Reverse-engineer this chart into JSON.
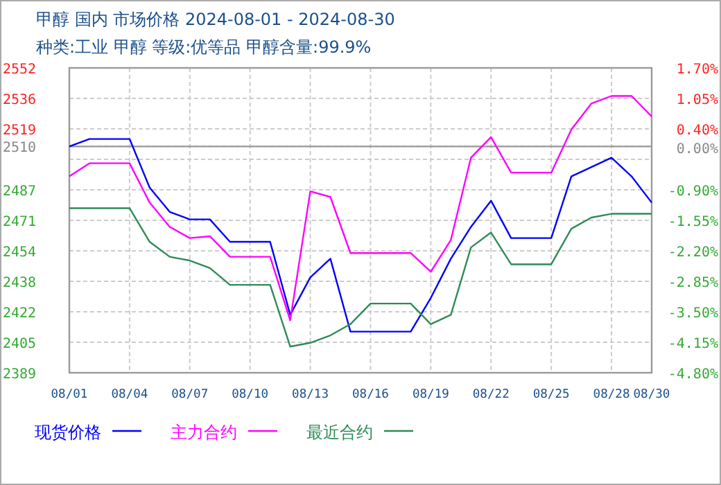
{
  "chart_data": {
    "type": "line",
    "title": "甲醇  国内  市场价格  2024-08-01 - 2024-08-30",
    "subtitle": "种类:工业 甲醇  等级:优等品  甲醇含量:99.9%",
    "x": [
      "2024-08-01",
      "2024-08-02",
      "2024-08-03",
      "2024-08-04",
      "2024-08-05",
      "2024-08-06",
      "2024-08-07",
      "2024-08-08",
      "2024-08-09",
      "2024-08-10",
      "2024-08-11",
      "2024-08-12",
      "2024-08-13",
      "2024-08-14",
      "2024-08-15",
      "2024-08-16",
      "2024-08-17",
      "2024-08-18",
      "2024-08-19",
      "2024-08-20",
      "2024-08-21",
      "2024-08-22",
      "2024-08-23",
      "2024-08-24",
      "2024-08-25",
      "2024-08-26",
      "2024-08-27",
      "2024-08-28",
      "2024-08-29",
      "2024-08-30"
    ],
    "series": [
      {
        "name": "现货价格",
        "color": "#0000ff",
        "values": [
          2510,
          2514,
          2514,
          2514,
          2488,
          2475,
          2471,
          2471,
          2459,
          2459,
          2459,
          2420,
          2440,
          2450,
          2411,
          2411,
          2411,
          2411,
          2429,
          2450,
          2467,
          2481,
          2461,
          2461,
          2461,
          2494,
          2499,
          2504,
          2494,
          2480
        ]
      },
      {
        "name": "主力合约",
        "color": "#ff00ff",
        "values": [
          2494,
          2501,
          2501,
          2501,
          2480,
          2467,
          2461,
          2462,
          2451,
          2451,
          2451,
          2417,
          2486,
          2483,
          2453,
          2453,
          2453,
          2453,
          2443,
          2460,
          2504,
          2515,
          2496,
          2496,
          2496,
          2519,
          2533,
          2537,
          2537,
          2526
        ]
      },
      {
        "name": "最近合约",
        "color": "#2e8b57",
        "values": [
          2477,
          2477,
          2477,
          2477,
          2459,
          2451,
          2449,
          2445,
          2436,
          2436,
          2436,
          2403,
          2405,
          2409,
          2415,
          2426,
          2426,
          2426,
          2415,
          2420,
          2456,
          2464,
          2447,
          2447,
          2447,
          2466,
          2472,
          2474,
          2474,
          2474
        ]
      }
    ],
    "xlim": [
      "2024-08-01",
      "2024-08-30"
    ],
    "xticks": [
      {
        "value": "2024-08-01",
        "label": "08/01"
      },
      {
        "value": "2024-08-04",
        "label": "08/04"
      },
      {
        "value": "2024-08-07",
        "label": "08/07"
      },
      {
        "value": "2024-08-10",
        "label": "08/10"
      },
      {
        "value": "2024-08-13",
        "label": "08/13"
      },
      {
        "value": "2024-08-16",
        "label": "08/16"
      },
      {
        "value": "2024-08-19",
        "label": "08/19"
      },
      {
        "value": "2024-08-22",
        "label": "08/22"
      },
      {
        "value": "2024-08-25",
        "label": "08/25"
      },
      {
        "value": "2024-08-28",
        "label": "08/28"
      },
      {
        "value": "2024-08-30",
        "label": "08/30"
      }
    ],
    "ylim": [
      2389,
      2552
    ],
    "yticks": [
      {
        "value": 2552,
        "label": "2552"
      },
      {
        "value": 2535.7,
        "label": "2536"
      },
      {
        "value": 2519.4,
        "label": "2519"
      },
      {
        "value": 2510,
        "label": "2510"
      },
      {
        "value": 2503.1,
        "label": null
      },
      {
        "value": 2486.8,
        "label": "2487"
      },
      {
        "value": 2470.5,
        "label": "2471"
      },
      {
        "value": 2454.2,
        "label": "2454"
      },
      {
        "value": 2437.9,
        "label": "2438"
      },
      {
        "value": 2421.6,
        "label": "2422"
      },
      {
        "value": 2405.3,
        "label": "2405"
      },
      {
        "value": 2389,
        "label": "2389"
      }
    ],
    "y2lim": [
      -4.8,
      1.7
    ],
    "y2ticks": [
      {
        "value": 1.7,
        "label": "1.70%"
      },
      {
        "value": 1.05,
        "label": "1.05%"
      },
      {
        "value": 0.4,
        "label": "0.40%"
      },
      {
        "value": 0,
        "label": "0.00%"
      },
      {
        "value": -0.9,
        "label": "-0.90%"
      },
      {
        "value": -1.55,
        "label": "-1.55%"
      },
      {
        "value": -2.2,
        "label": "-2.20%"
      },
      {
        "value": -2.85,
        "label": "-2.85%"
      },
      {
        "value": -3.5,
        "label": "-3.50%"
      },
      {
        "value": -4.15,
        "label": "-4.15%"
      },
      {
        "value": -4.8,
        "label": "-4.80%"
      }
    ],
    "ref_lines": [
      {
        "axis": "y",
        "value": 2510,
        "color": "#999999"
      }
    ],
    "grid": true,
    "legend": "bottom",
    "line_style": "solid",
    "marker": "none"
  }
}
